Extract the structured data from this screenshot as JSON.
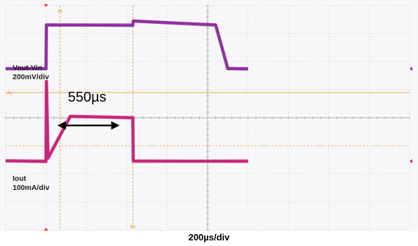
{
  "chart_data": {
    "type": "line",
    "title": "",
    "xlabel": "200µs/div",
    "grid": true,
    "x_div_us": 200,
    "series": [
      {
        "name": "Vout-Vin",
        "label_line1": "Vout-Vin",
        "label_line2": "200mV/div",
        "unit": "mV",
        "per_div": 200,
        "color": "#8e2f9c",
        "x_us": [
          0,
          200,
          202,
          630,
          632,
          1040,
          1100,
          1200
        ],
        "y_div": [
          1.75,
          1.75,
          3.3,
          3.3,
          3.45,
          3.3,
          1.75,
          1.75
        ]
      },
      {
        "name": "Iout",
        "label_line1": "Iout",
        "label_line2": "100mA/div",
        "unit": "mA",
        "per_div": 100,
        "color": "#c8257a",
        "x_us": [
          0,
          200,
          202,
          210,
          320,
          630,
          632,
          1200
        ],
        "y_div": [
          -1.55,
          -1.55,
          1.3,
          -1.45,
          0.05,
          0,
          -1.55,
          -1.55
        ]
      }
    ],
    "annotations": [
      {
        "text": "550µs",
        "from_us": 270,
        "to_us": 620
      }
    ],
    "cursors": {
      "vertical": [
        "Ax",
        "Bx"
      ],
      "horizontal": [
        "Ay"
      ]
    }
  }
}
